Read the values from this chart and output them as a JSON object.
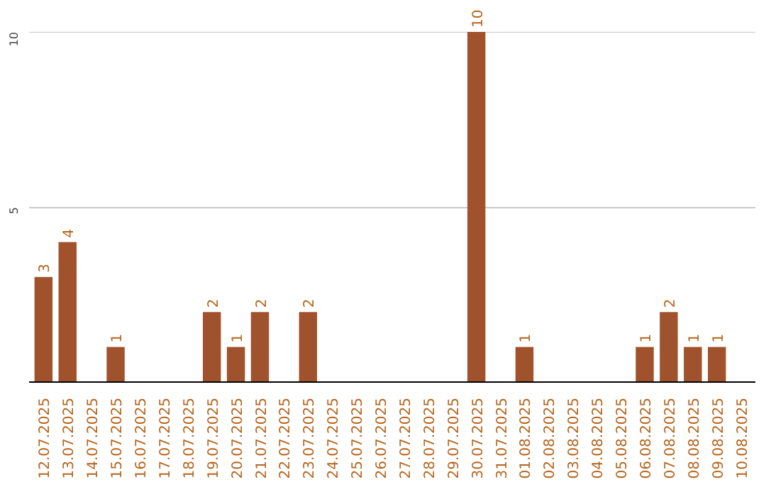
{
  "chart_data": {
    "type": "bar",
    "categories": [
      "12.07.2025",
      "13.07.2025",
      "14.07.2025",
      "15.07.2025",
      "16.07.2025",
      "17.07.2025",
      "18.07.2025",
      "19.07.2025",
      "20.07.2025",
      "21.07.2025",
      "22.07.2025",
      "23.07.2025",
      "24.07.2025",
      "25.07.2025",
      "26.07.2025",
      "27.07.2025",
      "28.07.2025",
      "29.07.2025",
      "30.07.2025",
      "31.07.2025",
      "01.08.2025",
      "02.08.2025",
      "03.08.2025",
      "04.08.2025",
      "05.08.2025",
      "06.08.2025",
      "07.08.2025",
      "08.08.2025",
      "09.08.2025",
      "10.08.2025"
    ],
    "values": [
      3,
      4,
      0,
      1,
      0,
      0,
      0,
      2,
      1,
      2,
      0,
      2,
      0,
      0,
      0,
      0,
      0,
      0,
      10,
      0,
      1,
      0,
      0,
      0,
      0,
      1,
      2,
      1,
      1,
      0
    ],
    "value_labels": [
      "3",
      "4",
      null,
      "1",
      null,
      null,
      null,
      "2",
      "1",
      "2",
      null,
      "2",
      null,
      null,
      null,
      null,
      null,
      null,
      "10",
      null,
      "1",
      null,
      null,
      null,
      null,
      "1",
      "2",
      "1",
      "1",
      null
    ],
    "color": "#a0522d",
    "ylim": [
      0,
      10
    ],
    "yticks": [
      {
        "value": 0,
        "label": null
      },
      5,
      10
    ],
    "grid": "y"
  }
}
